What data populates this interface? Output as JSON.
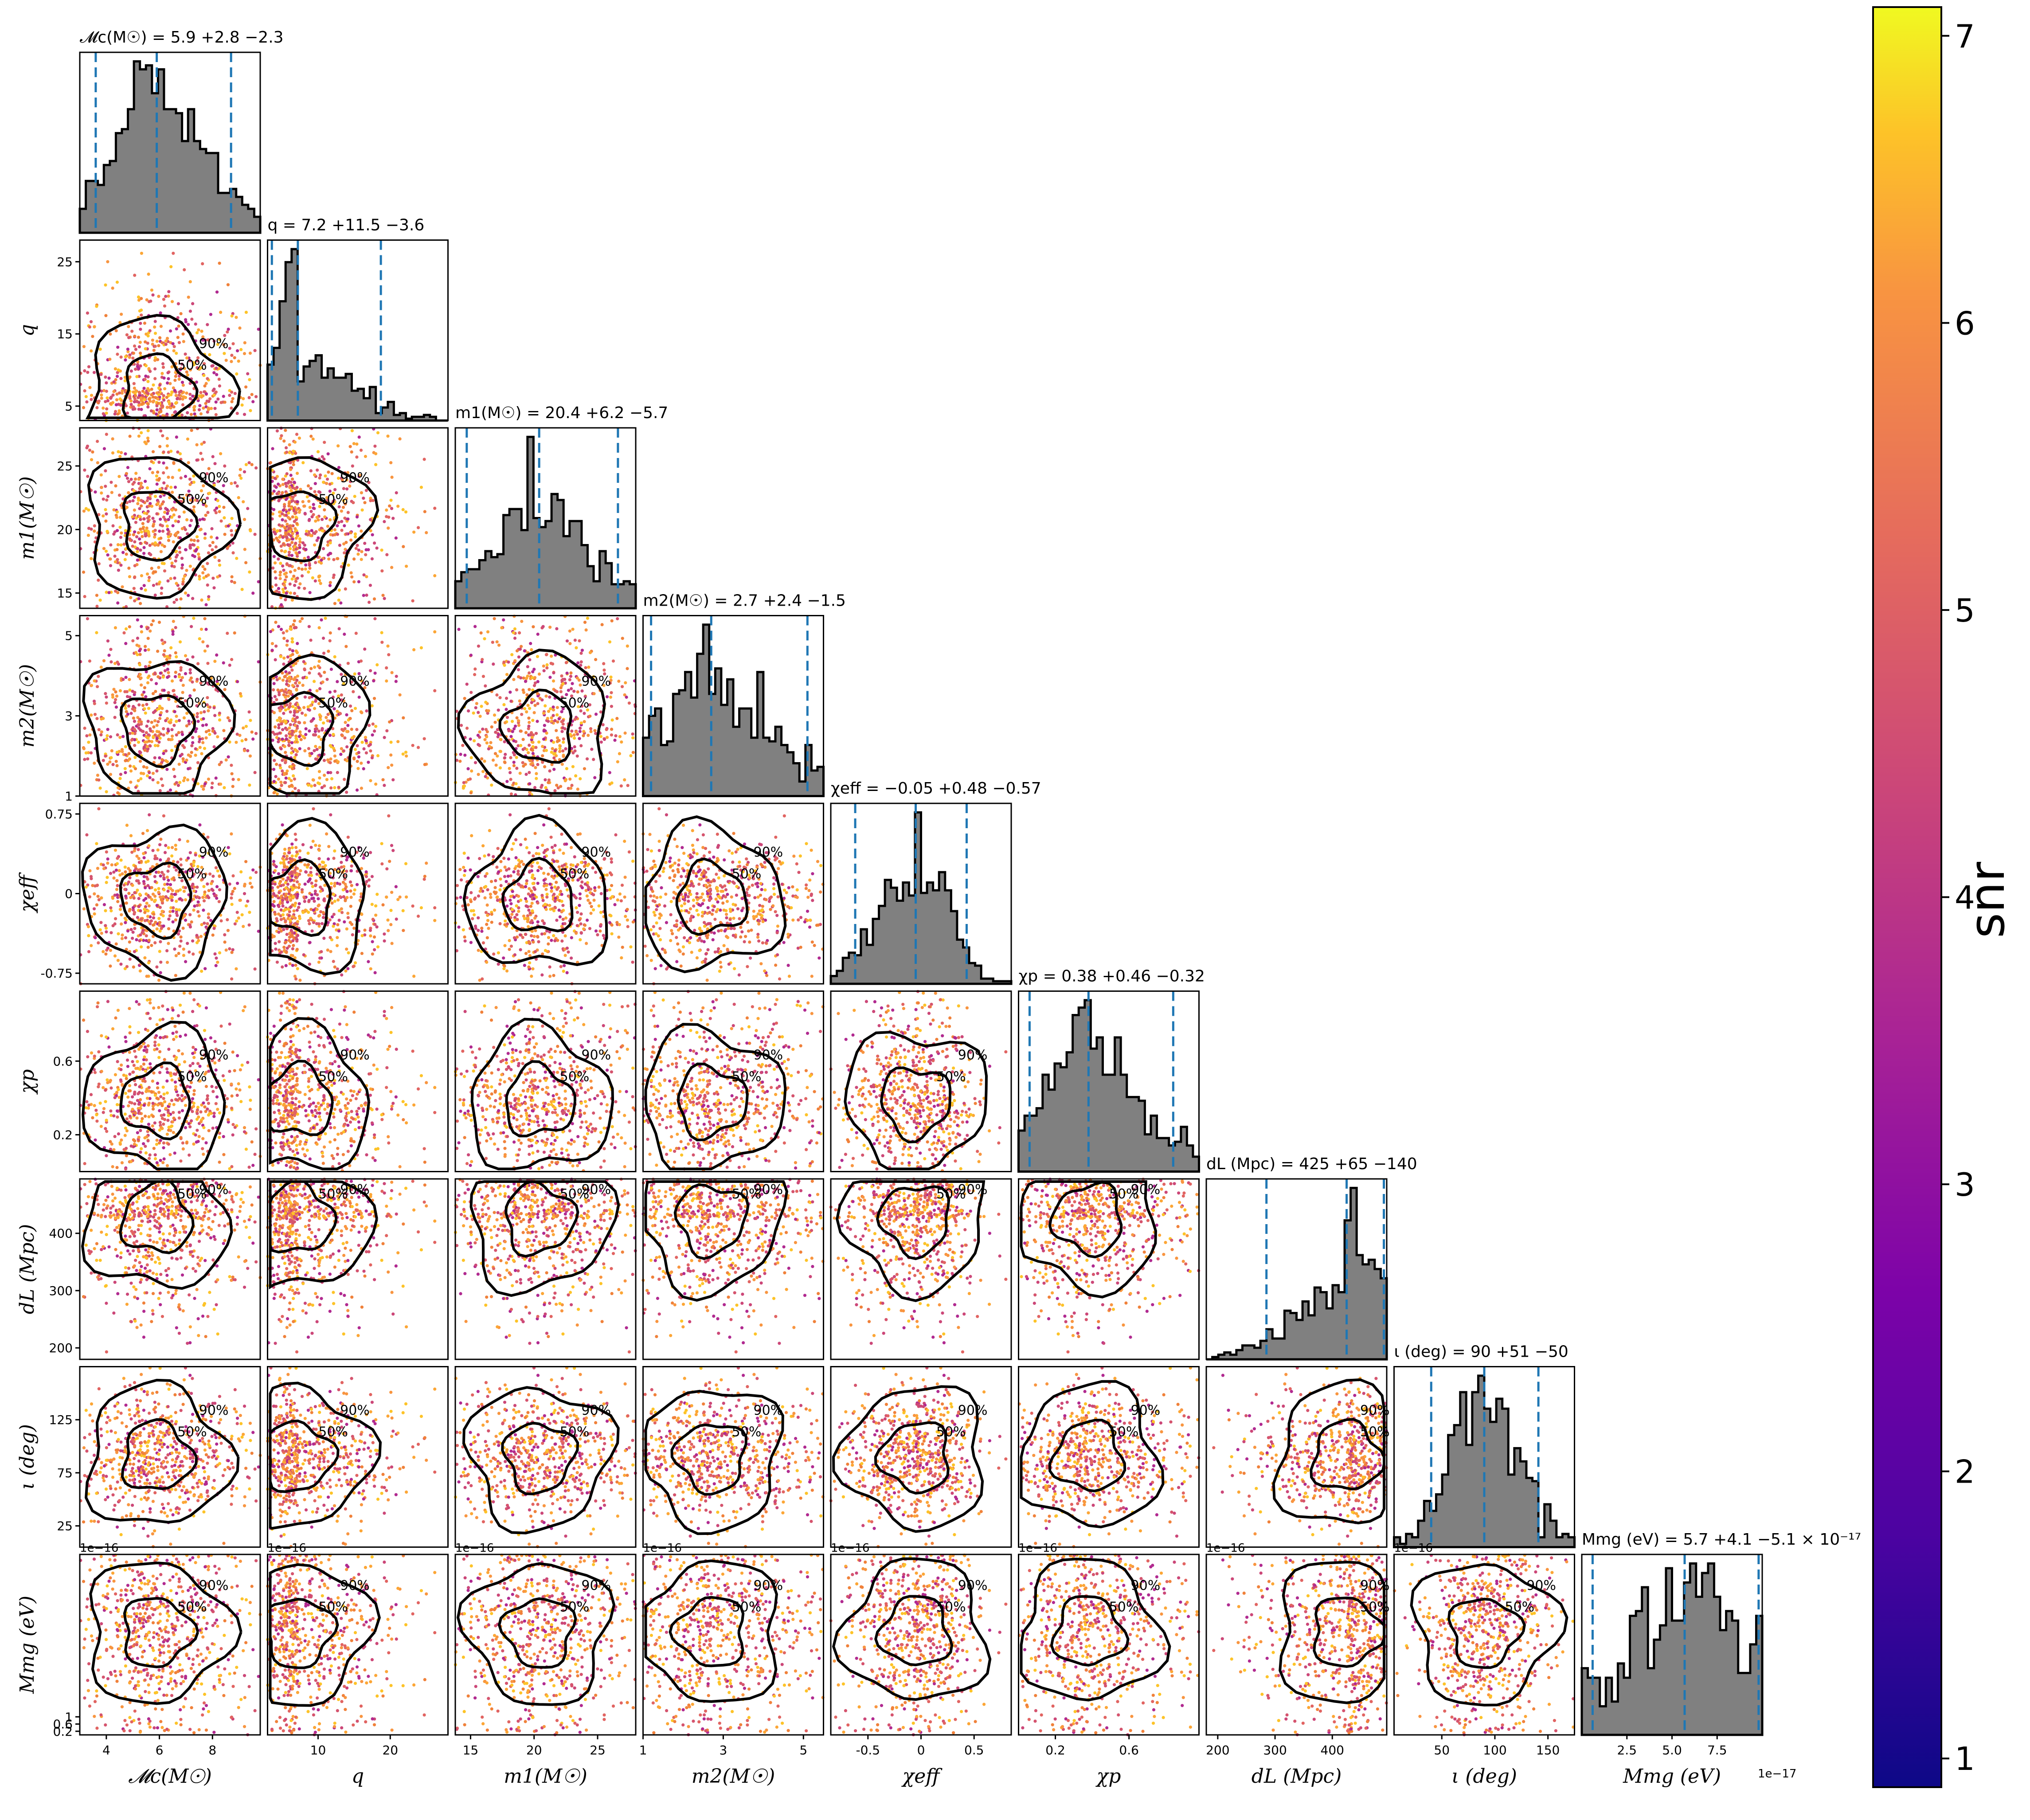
{
  "chart_data": {
    "type": "scatter",
    "title": "",
    "parameters": [
      {
        "name": "Mc",
        "axis_label": "𝓜c(M☉)",
        "title": "𝓜c(M☉) = 5.9 +2.8 −2.3",
        "median": 5.9,
        "plus": 2.8,
        "minus": 2.3,
        "range": [
          3.0,
          9.8
        ],
        "ticks": [
          4,
          6,
          8
        ]
      },
      {
        "name": "q",
        "axis_label": "q",
        "title": "q = 7.2 +11.5 −3.6",
        "median": 7.2,
        "plus": 11.5,
        "minus": 3.6,
        "range": [
          3.0,
          28.0
        ],
        "ticks": [
          10,
          20
        ],
        "yticks": [
          5,
          15,
          25
        ]
      },
      {
        "name": "m1",
        "axis_label": "m1(M☉)",
        "title": "m1(M☉) = 20.4 +6.2 −5.7",
        "median": 20.4,
        "plus": 6.2,
        "minus": 5.7,
        "range": [
          13.8,
          28.0
        ],
        "ticks": [
          15,
          20,
          25
        ]
      },
      {
        "name": "m2",
        "axis_label": "m2(M☉)",
        "title": "m2(M☉) = 2.7 +2.4 −1.5",
        "median": 2.7,
        "plus": 2.4,
        "minus": 1.5,
        "range": [
          1.0,
          5.5
        ],
        "ticks": [
          1,
          3,
          5
        ]
      },
      {
        "name": "chi_eff",
        "axis_label": "χeff",
        "title": "χeff = −0.05 +0.48 −0.57",
        "median": -0.05,
        "plus": 0.48,
        "minus": 0.57,
        "range": [
          -0.85,
          0.85
        ],
        "ticks": [
          -0.5,
          0.0,
          0.5
        ],
        "yticks": [
          -0.75,
          0.0,
          0.75
        ]
      },
      {
        "name": "chi_p",
        "axis_label": "χp",
        "title": "χp = 0.38 +0.46 −0.32",
        "median": 0.38,
        "plus": 0.46,
        "minus": 0.32,
        "range": [
          0.0,
          0.98
        ],
        "ticks": [
          0.2,
          0.6
        ],
        "yticks": [
          0.2,
          0.6
        ]
      },
      {
        "name": "dL",
        "axis_label": "dL (Mpc)",
        "title": "dL (Mpc) = 425 +65 −140",
        "median": 425,
        "plus": 65,
        "minus": 140,
        "range": [
          180,
          495
        ],
        "ticks": [
          200,
          300,
          400
        ],
        "yticks": [
          200,
          300,
          400
        ]
      },
      {
        "name": "iota",
        "axis_label": "ι (deg)",
        "title": "ι (deg) = 90 +51 −50",
        "median": 90,
        "plus": 51,
        "minus": 50,
        "range": [
          5,
          175
        ],
        "ticks": [
          50,
          100,
          150
        ],
        "yticks": [
          25,
          75,
          125
        ]
      },
      {
        "name": "Mmg",
        "axis_label": "Mmg (eV)",
        "title": "Mmg (eV) = 5.7 +4.1 −5.1 × 10⁻¹⁷",
        "median": 5.7,
        "plus": 4.1,
        "minus": 5.1,
        "range": [
          0.0,
          10.0
        ],
        "ticks": [
          2.5,
          5.0,
          7.5
        ],
        "tick_labels": [
          "2.5",
          "5.0",
          "7.5"
        ],
        "yticks": [
          0.2,
          0.6,
          1.0
        ],
        "offset_x": "1e−17",
        "offset_y": "1e−16"
      }
    ],
    "contour_levels": [
      "50%",
      "90%"
    ],
    "colorbar": {
      "label": "snr",
      "range": [
        0.9,
        7.1
      ],
      "ticks": [
        1,
        2,
        3,
        4,
        5,
        6,
        7
      ],
      "colormap": "plasma"
    },
    "colors": {
      "hist_fill": "#808080",
      "hist_edge": "#000000",
      "quantile_line": "#1f77b4",
      "point_colors": [
        "#f0813a",
        "#e16462",
        "#fca636",
        "#d5546e",
        "#f89540",
        "#b12a90",
        "#cc4778",
        "#fdc328"
      ]
    }
  }
}
